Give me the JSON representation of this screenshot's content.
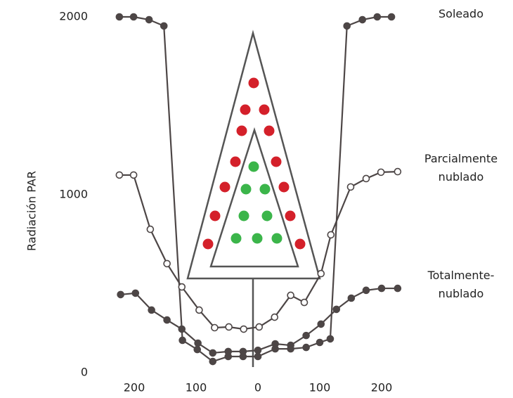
{
  "chart_data": {
    "type": "line",
    "y_label": "Radiación PAR",
    "xlim": [
      -250,
      250
    ],
    "ylim": [
      0,
      2000
    ],
    "xticks": [
      {
        "value": -200,
        "label": "200"
      },
      {
        "value": -100,
        "label": "100"
      },
      0,
      {
        "value": 100,
        "label": "100"
      },
      {
        "value": 200,
        "label": "200"
      }
    ],
    "yticks": [
      0,
      1000,
      2000
    ],
    "grid": false,
    "series": [
      {
        "name": "Soleado",
        "color": "#4d4646",
        "marker_fill": "#4d4646",
        "x": [
          -224,
          -201,
          -176,
          -152,
          -122,
          -98,
          -73,
          -48,
          -24,
          0,
          28,
          53,
          78,
          100,
          117,
          144,
          169,
          193,
          216
        ],
        "values": [
          2000,
          2000,
          1984,
          1949,
          182,
          130,
          63,
          91,
          91,
          91,
          134,
          134,
          142,
          170,
          190,
          1949,
          1984,
          2000,
          2000
        ]
      },
      {
        "name": "Parcialmente nublado",
        "color": "#4d4646",
        "marker_fill": "#ffffff",
        "x": [
          -224,
          -201,
          -174,
          -147,
          -123,
          -95,
          -70,
          -47,
          -23,
          2,
          27,
          53,
          75,
          102,
          118,
          150,
          175,
          199,
          226
        ],
        "values": [
          1111,
          1111,
          806,
          613,
          482,
          352,
          253,
          257,
          245,
          257,
          312,
          435,
          395,
          557,
          775,
          1044,
          1091,
          1127,
          1130
        ]
      },
      {
        "name": "Totalmente-nublado",
        "color": "#4d4646",
        "marker_fill": "#4d4646",
        "x": [
          -222,
          -198,
          -172,
          -147,
          -123,
          -97,
          -73,
          -48,
          -24,
          0,
          28,
          53,
          78,
          102,
          127,
          151,
          175,
          200,
          226
        ],
        "values": [
          439,
          447,
          352,
          296,
          245,
          166,
          111,
          119,
          119,
          126,
          162,
          154,
          209,
          273,
          356,
          419,
          463,
          474,
          474
        ]
      }
    ]
  }
}
